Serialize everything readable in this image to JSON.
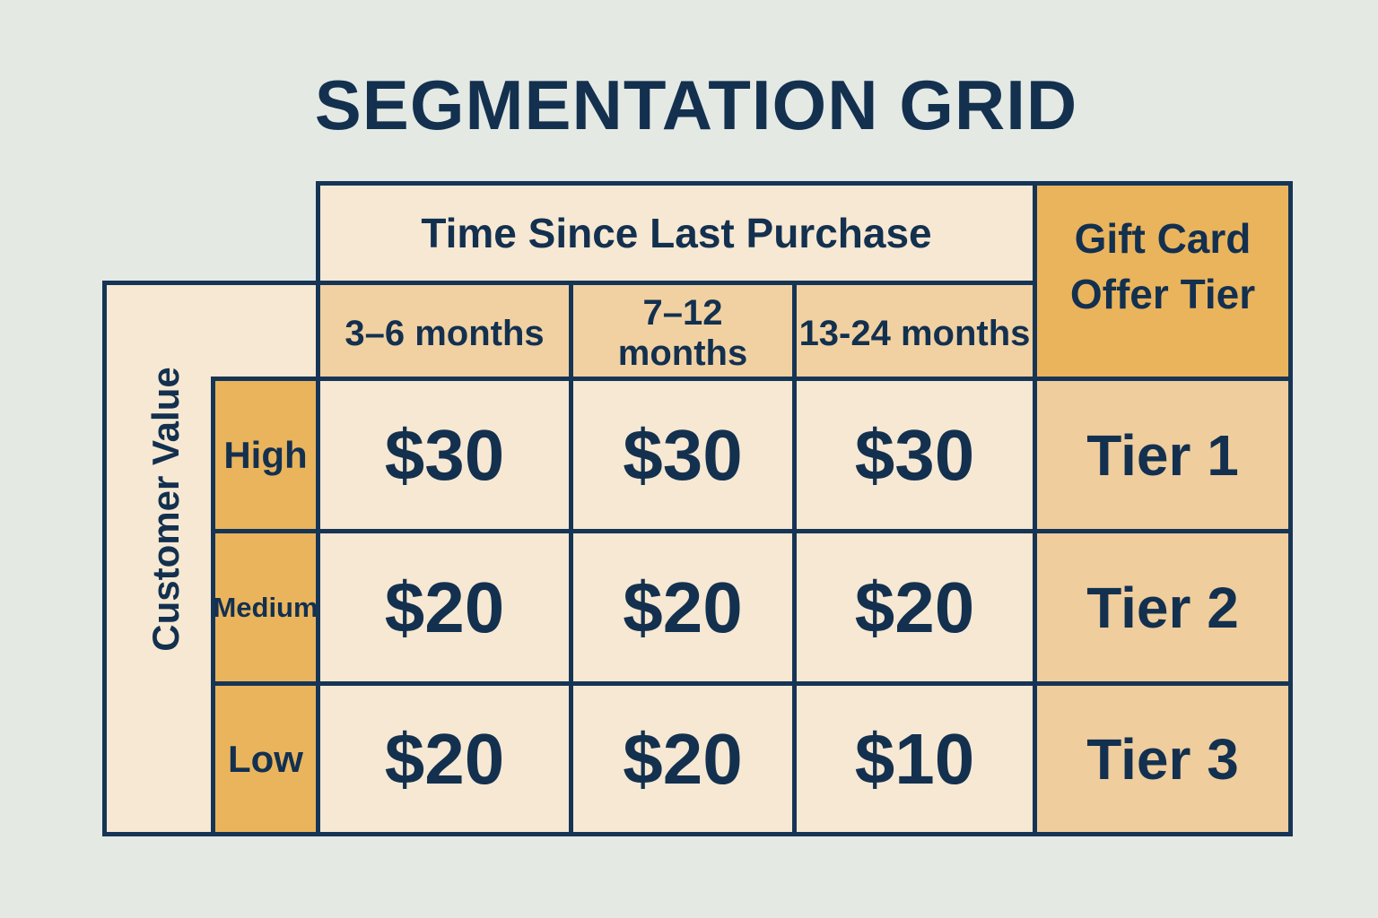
{
  "title": "SEGMENTATION GRID",
  "header": {
    "time_label": "Time Since Last Purchase",
    "offer_label_line1": "Gift Card",
    "offer_label_line2": "Offer Tier"
  },
  "side_label": "Customer Value",
  "columns": [
    "3–6 months",
    "7–12 months",
    "13-24 months"
  ],
  "rows": [
    {
      "label": "High",
      "values": [
        "$30",
        "$30",
        "$30"
      ],
      "tier": "Tier 1"
    },
    {
      "label": "Medium",
      "values": [
        "$20",
        "$20",
        "$20"
      ],
      "tier": "Tier 2"
    },
    {
      "label": "Low",
      "values": [
        "$20",
        "$20",
        "$10"
      ],
      "tier": "Tier 3"
    }
  ],
  "colors": {
    "background": "#e4e9e4",
    "navy": "#13304f",
    "light_cell": "#f6e8d2",
    "peach_cell": "#f1d1a2",
    "orange_cell": "#eab45c",
    "tier_cell": "#efcd9d"
  }
}
